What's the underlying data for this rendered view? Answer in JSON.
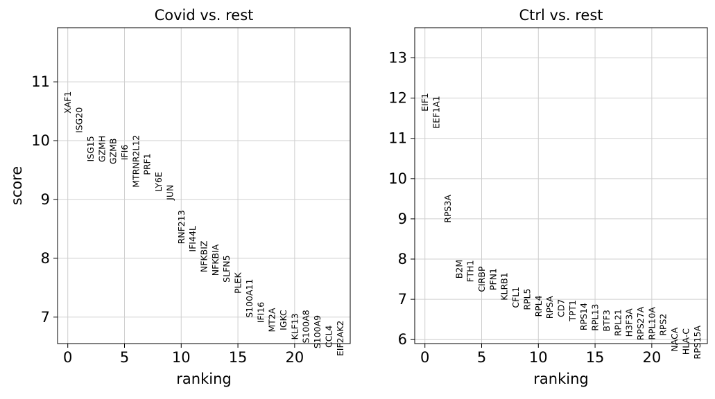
{
  "chart_data": [
    {
      "type": "scatter",
      "title": "Covid vs. rest",
      "xlabel": "ranking",
      "ylabel": "score",
      "xlim": [
        -0.9,
        24.9
      ],
      "ylim": [
        6.55,
        11.92
      ],
      "xticks": [
        0,
        5,
        10,
        15,
        20
      ],
      "yticks": [
        7,
        8,
        9,
        10,
        11
      ],
      "grid": true,
      "points": [
        {
          "x": 0,
          "y": 10.65,
          "label": "XAF1"
        },
        {
          "x": 1,
          "y": 10.35,
          "label": "ISG20"
        },
        {
          "x": 2,
          "y": 9.86,
          "label": "ISG15"
        },
        {
          "x": 3,
          "y": 9.86,
          "label": "GZMH"
        },
        {
          "x": 4,
          "y": 9.82,
          "label": "GZMB"
        },
        {
          "x": 5,
          "y": 9.8,
          "label": "IFI6"
        },
        {
          "x": 6,
          "y": 9.65,
          "label": "MTRNR2L12"
        },
        {
          "x": 7,
          "y": 9.6,
          "label": "PRF1"
        },
        {
          "x": 8,
          "y": 9.3,
          "label": "LY6E"
        },
        {
          "x": 9,
          "y": 9.12,
          "label": "JUN"
        },
        {
          "x": 10,
          "y": 8.53,
          "label": "RNF213"
        },
        {
          "x": 11,
          "y": 8.33,
          "label": "IFI44L"
        },
        {
          "x": 12,
          "y": 8.03,
          "label": "NFKBIZ"
        },
        {
          "x": 13,
          "y": 7.97,
          "label": "NFKBIA"
        },
        {
          "x": 14,
          "y": 7.82,
          "label": "SLFN5"
        },
        {
          "x": 15,
          "y": 7.58,
          "label": "PLEK"
        },
        {
          "x": 16,
          "y": 7.32,
          "label": "S100A11"
        },
        {
          "x": 17,
          "y": 7.08,
          "label": "IFI16"
        },
        {
          "x": 18,
          "y": 6.95,
          "label": "MT2A"
        },
        {
          "x": 19,
          "y": 6.95,
          "label": "IGKC"
        },
        {
          "x": 20,
          "y": 6.84,
          "label": "KLF13"
        },
        {
          "x": 21,
          "y": 6.84,
          "label": "S100A8"
        },
        {
          "x": 22,
          "y": 6.75,
          "label": "S100A9"
        },
        {
          "x": 23,
          "y": 6.67,
          "label": "CCL4"
        },
        {
          "x": 24,
          "y": 6.64,
          "label": "EIF2AK2"
        }
      ]
    },
    {
      "type": "scatter",
      "title": "Ctrl vs. rest",
      "xlabel": "ranking",
      "ylabel": "",
      "xlim": [
        -0.9,
        24.9
      ],
      "ylim": [
        5.9,
        13.75
      ],
      "xticks": [
        0,
        5,
        10,
        15,
        20
      ],
      "yticks": [
        6,
        7,
        8,
        9,
        10,
        11,
        12,
        13
      ],
      "grid": true,
      "points": [
        {
          "x": 0,
          "y": 11.9,
          "label": "EIF1"
        },
        {
          "x": 1,
          "y": 11.65,
          "label": "EEF1A1"
        },
        {
          "x": 2,
          "y": 9.25,
          "label": "RPS3A"
        },
        {
          "x": 3,
          "y": 7.75,
          "label": "B2M"
        },
        {
          "x": 4,
          "y": 7.7,
          "label": "FTH1"
        },
        {
          "x": 5,
          "y": 7.5,
          "label": "CIRBP"
        },
        {
          "x": 6,
          "y": 7.5,
          "label": "PFN1"
        },
        {
          "x": 7,
          "y": 7.32,
          "label": "KLRB1"
        },
        {
          "x": 8,
          "y": 7.05,
          "label": "CFL1"
        },
        {
          "x": 9,
          "y": 7.0,
          "label": "RPL5"
        },
        {
          "x": 10,
          "y": 6.83,
          "label": "RPL4"
        },
        {
          "x": 11,
          "y": 6.8,
          "label": "RPSA"
        },
        {
          "x": 12,
          "y": 6.78,
          "label": "CD7"
        },
        {
          "x": 13,
          "y": 6.72,
          "label": "TPT1"
        },
        {
          "x": 14,
          "y": 6.57,
          "label": "RPS14"
        },
        {
          "x": 15,
          "y": 6.55,
          "label": "RPL13"
        },
        {
          "x": 16,
          "y": 6.47,
          "label": "BTF3"
        },
        {
          "x": 17,
          "y": 6.42,
          "label": "RPL21"
        },
        {
          "x": 18,
          "y": 6.42,
          "label": "H3F3A"
        },
        {
          "x": 19,
          "y": 6.4,
          "label": "RPS27A"
        },
        {
          "x": 20,
          "y": 6.4,
          "label": "RPL10A"
        },
        {
          "x": 21,
          "y": 6.37,
          "label": "RPS2"
        },
        {
          "x": 22,
          "y": 6.0,
          "label": "NACA"
        },
        {
          "x": 23,
          "y": 5.95,
          "label": "HLA-C"
        },
        {
          "x": 24,
          "y": 5.93,
          "label": "RPS15A"
        }
      ]
    }
  ]
}
